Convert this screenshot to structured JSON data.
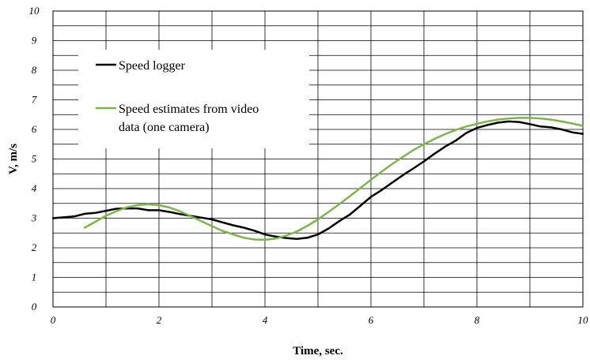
{
  "chart_data": {
    "type": "line",
    "xlabel": "Time, sec.",
    "ylabel": "V, m/s",
    "xlim": [
      0,
      10
    ],
    "ylim": [
      0,
      10
    ],
    "x_ticks": [
      "0",
      "2",
      "4",
      "6",
      "8",
      "10"
    ],
    "y_ticks": [
      "0",
      "1",
      "2",
      "3",
      "4",
      "5",
      "6",
      "7",
      "8",
      "9",
      "10"
    ],
    "grid": true,
    "legend_position": "upper-left, inside plot",
    "series": [
      {
        "name": "Speed logger",
        "color": "#000000",
        "x": [
          0,
          0.4,
          0.6,
          0.8,
          1.0,
          1.2,
          1.4,
          1.6,
          1.8,
          2.0,
          2.2,
          2.4,
          2.6,
          2.8,
          3.0,
          3.2,
          3.4,
          3.6,
          3.8,
          4.0,
          4.2,
          4.4,
          4.6,
          4.8,
          5.0,
          5.2,
          5.4,
          5.6,
          5.8,
          6.0,
          6.2,
          6.4,
          6.6,
          6.8,
          7.0,
          7.2,
          7.4,
          7.6,
          7.8,
          8.0,
          8.2,
          8.4,
          8.6,
          8.8,
          9.0,
          9.2,
          9.4,
          9.6,
          9.8,
          10.0
        ],
        "y": [
          3.0,
          3.06,
          3.15,
          3.18,
          3.25,
          3.32,
          3.33,
          3.33,
          3.27,
          3.27,
          3.21,
          3.14,
          3.08,
          3.02,
          2.96,
          2.86,
          2.76,
          2.68,
          2.58,
          2.45,
          2.38,
          2.33,
          2.3,
          2.34,
          2.45,
          2.65,
          2.9,
          3.12,
          3.42,
          3.72,
          3.95,
          4.2,
          4.45,
          4.68,
          4.92,
          5.18,
          5.42,
          5.62,
          5.88,
          6.05,
          6.15,
          6.23,
          6.27,
          6.25,
          6.18,
          6.1,
          6.07,
          6.0,
          5.9,
          5.85
        ]
      },
      {
        "name": "Speed estimates from video data (one camera)",
        "legend_lines": [
          "Speed estimates from video",
          "data (one camera)"
        ],
        "color": "#7ab648",
        "x": [
          0.6,
          0.8,
          1.0,
          1.2,
          1.4,
          1.6,
          1.8,
          2.0,
          2.2,
          2.4,
          2.6,
          2.8,
          3.0,
          3.2,
          3.4,
          3.6,
          3.8,
          4.0,
          4.2,
          4.4,
          4.6,
          4.8,
          5.0,
          5.2,
          5.4,
          5.6,
          5.8,
          6.0,
          6.2,
          6.4,
          6.6,
          6.8,
          7.0,
          7.2,
          7.4,
          7.6,
          7.8,
          8.0,
          8.2,
          8.4,
          8.6,
          8.8,
          9.0,
          9.2,
          9.4,
          9.6,
          9.8,
          10.0
        ],
        "y": [
          2.68,
          2.88,
          3.08,
          3.24,
          3.37,
          3.44,
          3.47,
          3.44,
          3.36,
          3.23,
          3.07,
          2.9,
          2.73,
          2.57,
          2.45,
          2.34,
          2.28,
          2.27,
          2.31,
          2.41,
          2.55,
          2.74,
          2.96,
          3.21,
          3.47,
          3.74,
          4.02,
          4.3,
          4.57,
          4.83,
          5.07,
          5.3,
          5.5,
          5.68,
          5.84,
          5.98,
          6.1,
          6.19,
          6.27,
          6.33,
          6.37,
          6.39,
          6.39,
          6.37,
          6.33,
          6.27,
          6.2,
          6.12
        ]
      }
    ]
  }
}
